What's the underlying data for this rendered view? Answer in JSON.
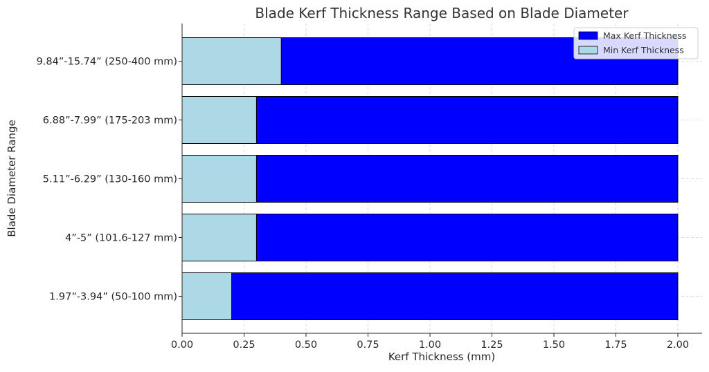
{
  "chart_data": {
    "type": "bar",
    "orientation": "horizontal",
    "stacked": false,
    "title": "Blade Kerf Thickness Range Based on Blade Diameter",
    "xlabel": "Kerf Thickness (mm)",
    "ylabel": "Blade Diameter Range",
    "categories": [
      "1.97”-3.94” (50-100 mm)",
      "4”-5” (101.6-127 mm)",
      "5.11”-6.29” (130-160 mm)",
      "6.88”-7.99” (175-203 mm)",
      "9.84”-15.74” (250-400 mm)"
    ],
    "series": [
      {
        "name": "Max Kerf Thickness",
        "values": [
          2.0,
          2.0,
          2.0,
          2.0,
          2.0
        ],
        "color": "#0000ff"
      },
      {
        "name": "Min Kerf Thickness",
        "values": [
          0.2,
          0.3,
          0.3,
          0.3,
          0.4
        ],
        "color": "#add8e6"
      }
    ],
    "xlim": [
      0,
      2.1
    ],
    "xticks": [
      "0.00",
      "0.25",
      "0.50",
      "0.75",
      "1.00",
      "1.25",
      "1.50",
      "1.75",
      "2.00"
    ],
    "grid": true,
    "legend_position": "top-right"
  }
}
